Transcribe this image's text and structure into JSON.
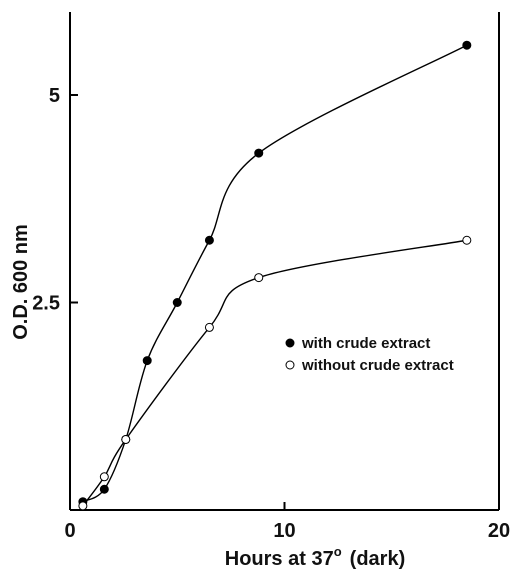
{
  "chart_data": {
    "type": "scatter",
    "title": "",
    "xlabel": "Hours at 37",
    "xlabel_superscript": "o",
    "xlabel_suffix": "(dark)",
    "ylabel": "O.D. 600 nm",
    "xlim": [
      0,
      20
    ],
    "ylim": [
      0,
      6
    ],
    "xticks": [
      0,
      10,
      20
    ],
    "xtick_labels": [
      "0",
      "10",
      "20"
    ],
    "yticks": [
      2.5,
      5
    ],
    "ytick_labels": [
      "2.5",
      "5"
    ],
    "grid": false,
    "legend_position": "center-right",
    "series": [
      {
        "name": "with crude extract",
        "marker": "filled-circle",
        "color": "#000000",
        "x": [
          0.6,
          1.6,
          2.6,
          3.6,
          5.0,
          6.5,
          8.8,
          18.5
        ],
        "y": [
          0.1,
          0.25,
          0.85,
          1.8,
          2.5,
          3.25,
          4.3,
          5.6
        ]
      },
      {
        "name": "without crude extract",
        "marker": "open-circle",
        "color": "#000000",
        "x": [
          0.6,
          1.6,
          2.6,
          6.5,
          8.8,
          18.5
        ],
        "y": [
          0.05,
          0.4,
          0.85,
          2.2,
          2.8,
          3.25
        ]
      }
    ]
  }
}
